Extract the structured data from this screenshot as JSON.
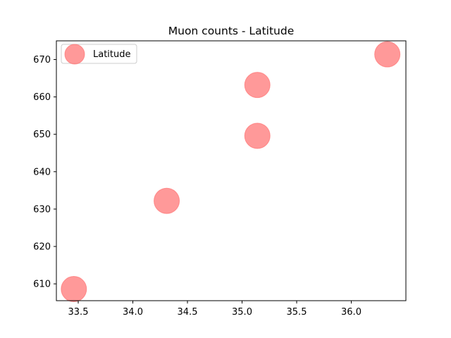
{
  "chart_data": {
    "type": "scatter",
    "title": "Muon counts - Latitude",
    "xlabel": "",
    "ylabel": "",
    "xlim": [
      33.3,
      36.5
    ],
    "ylim": [
      605.5,
      675
    ],
    "xticks": [
      33.5,
      34.0,
      34.5,
      35.0,
      35.5,
      36.0
    ],
    "xtick_labels": [
      "33.5",
      "34.0",
      "34.5",
      "35.0",
      "35.5",
      "36.0"
    ],
    "yticks": [
      610,
      620,
      630,
      640,
      650,
      660,
      670
    ],
    "ytick_labels": [
      "610",
      "620",
      "630",
      "640",
      "650",
      "660",
      "670"
    ],
    "grid": false,
    "legend_position": "upper left",
    "series": [
      {
        "name": "Latitude",
        "color": "#ff8080",
        "points": [
          {
            "x": 33.46,
            "y": 608.6
          },
          {
            "x": 34.31,
            "y": 632.2
          },
          {
            "x": 35.14,
            "y": 649.6
          },
          {
            "x": 35.14,
            "y": 663.2
          },
          {
            "x": 36.33,
            "y": 671.4
          }
        ]
      }
    ]
  }
}
